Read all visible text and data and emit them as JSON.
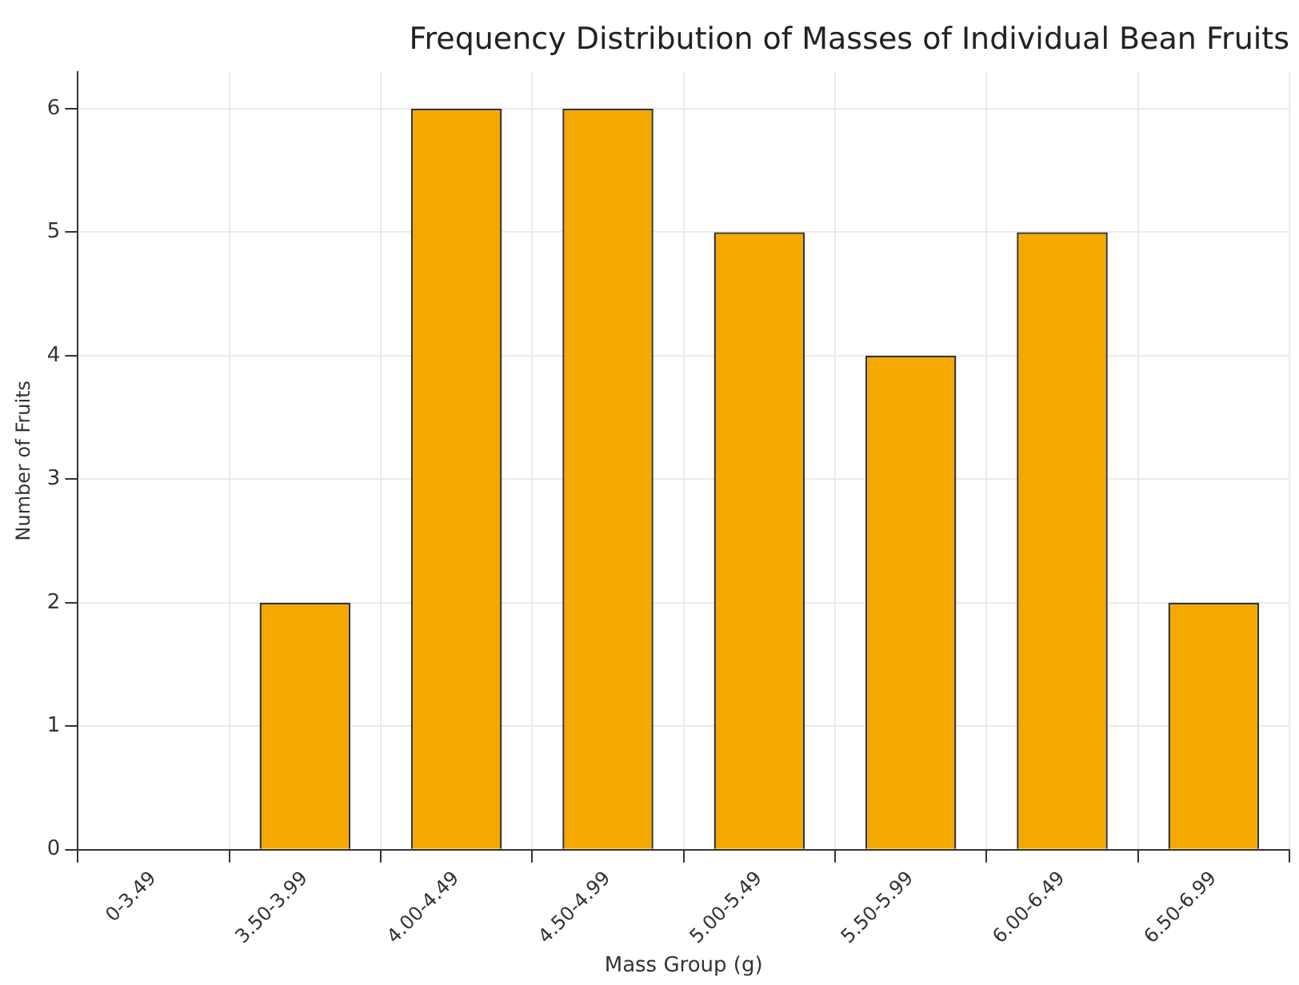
{
  "chart_data": {
    "type": "bar",
    "title": "Frequency Distribution of Masses of Individual Bean Fruits",
    "xlabel": "Mass Group (g)",
    "ylabel": "Number of Fruits",
    "categories": [
      "0-3.49",
      "3.50-3.99",
      "4.00-4.49",
      "4.50-4.99",
      "5.00-5.49",
      "5.50-5.99",
      "6.00-6.49",
      "6.50-6.99"
    ],
    "values": [
      0,
      2,
      6,
      6,
      5,
      4,
      5,
      2
    ],
    "color": "#f5a800",
    "ylim": [
      0,
      6.3
    ],
    "yticks": [
      0,
      1,
      2,
      3,
      4,
      5,
      6
    ],
    "grid": true
  }
}
